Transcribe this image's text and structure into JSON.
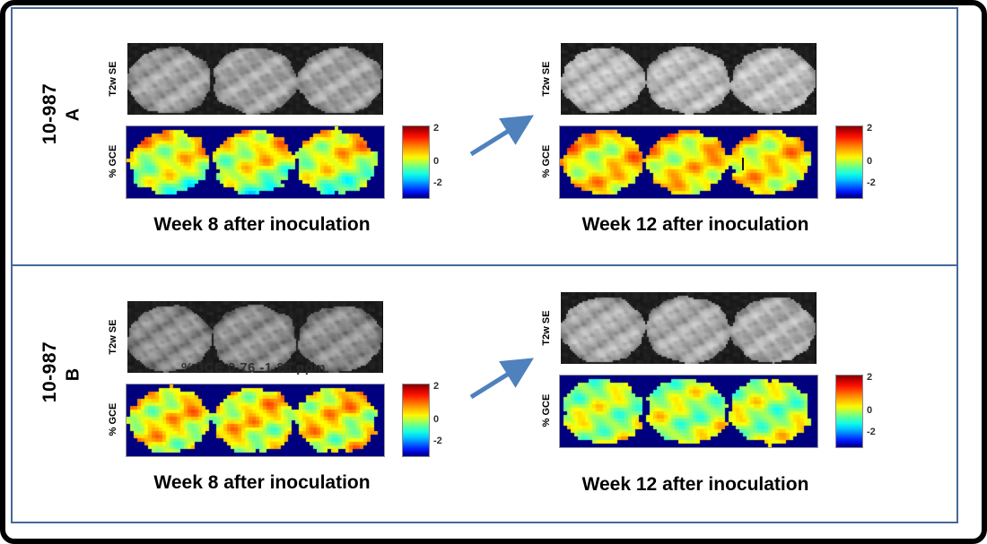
{
  "colorbar": {
    "tick_top": "2",
    "tick_mid": "0",
    "tick_bot": "-2"
  },
  "colors": {
    "panel_border": "#44689b",
    "arrow": "#4f81bd",
    "frame": "#000000",
    "heat_background": "#00007f",
    "mri_background": "#0d0d0d",
    "caption_text": "#000000",
    "tick_text": "#303030",
    "overlay_text": "#2a2a2a"
  },
  "rows": [
    {
      "side_label": "10-987",
      "side_sublabel": "A",
      "panels": [
        {
          "mri_label": "T2w SE",
          "map_label": "% GCE",
          "caption": "Week 8 after inoculation",
          "render": {
            "heat": {
              "seed": 11,
              "base": 0.45,
              "amp": 0.85,
              "vert": 0.65,
              "edge": 0.0
            },
            "mri": {
              "seed": 3,
              "brightness": 0.66
            }
          }
        },
        {
          "mri_label": "T2w SE",
          "map_label": "% GCE",
          "caption": "Week 12 after inoculation",
          "render": {
            "heat": {
              "seed": 23,
              "base": 0.55,
              "amp": 0.8,
              "vert": 0.1,
              "edge": 0.45
            },
            "mri": {
              "seed": 8,
              "brightness": 0.76
            }
          }
        }
      ]
    },
    {
      "side_label": "10-987",
      "side_sublabel": "B",
      "panels": [
        {
          "mri_label": "T2w SE",
          "map_label": "% GCE",
          "caption": "Week 8 after inoculation",
          "overlay_text": "%GCE 0.76 -1.26 ppm",
          "render": {
            "heat": {
              "seed": 37,
              "base": 0.55,
              "amp": 0.95,
              "vert": 0.15,
              "edge": 0.25
            },
            "mri": {
              "seed": 14,
              "brightness": 0.58
            }
          }
        },
        {
          "mri_label": "T2w SE",
          "map_label": "% GCE",
          "caption": "Week 12 after inoculation",
          "render": {
            "heat": {
              "seed": 51,
              "base": 0.2,
              "amp": 0.8,
              "vert": -0.1,
              "edge": 0.15
            },
            "mri": {
              "seed": 21,
              "brightness": 0.7
            }
          }
        }
      ]
    }
  ]
}
